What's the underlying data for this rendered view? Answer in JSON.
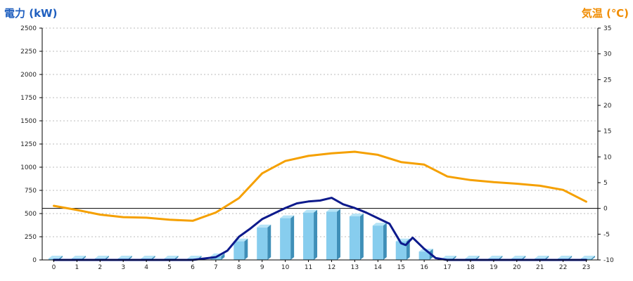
{
  "chart_data": {
    "type": "bar",
    "left_axis_title": "電力 (kW)",
    "right_axis_title": "気温 (℃)",
    "colors": {
      "left_title": "#1f5fbf",
      "right_title": "#f08c00",
      "bar_front": "#87cdee",
      "bar_top": "#b6e4f7",
      "bar_side": "#3f8fb8",
      "power_line": "#0d1a8c",
      "temp_line": "#f5a000",
      "grid": "#bbbbbb"
    },
    "categories": [
      "0",
      "1",
      "2",
      "3",
      "4",
      "5",
      "6",
      "7",
      "8",
      "9",
      "10",
      "11",
      "12",
      "13",
      "14",
      "15",
      "16",
      "17",
      "18",
      "19",
      "20",
      "21",
      "22",
      "23"
    ],
    "y_left": {
      "min": 0,
      "max": 2500,
      "ticks": [
        "0",
        "250",
        "500",
        "750",
        "1000",
        "1250",
        "1500",
        "1750",
        "2000",
        "2250",
        "2500"
      ]
    },
    "y_right": {
      "min": -10,
      "max": 35,
      "ticks": [
        "-10",
        "-5",
        "0",
        "5",
        "10",
        "15",
        "20",
        "25",
        "30",
        "35"
      ],
      "zero_line": 0
    },
    "series": [
      {
        "kind": "bar",
        "axis": "left",
        "values": [
          0,
          0,
          0,
          0,
          0,
          0,
          0,
          40,
          200,
          350,
          450,
          510,
          520,
          470,
          370,
          200,
          90,
          0,
          0,
          0,
          0,
          0,
          0,
          0
        ]
      },
      {
        "kind": "line",
        "axis": "left",
        "x": [
          0,
          1,
          2,
          3,
          4,
          5,
          6,
          7,
          7.5,
          8,
          8.5,
          9,
          9.5,
          10,
          10.5,
          11,
          11.5,
          12,
          12.5,
          13,
          13.5,
          14,
          14.5,
          15,
          15.2,
          15.5,
          16,
          16.5,
          17,
          18,
          19,
          20,
          21,
          22,
          23
        ],
        "values": [
          0,
          0,
          0,
          0,
          0,
          0,
          0,
          30,
          100,
          250,
          340,
          440,
          500,
          560,
          610,
          630,
          640,
          670,
          600,
          560,
          510,
          450,
          390,
          180,
          160,
          240,
          120,
          20,
          0,
          0,
          0,
          0,
          0,
          0,
          0
        ]
      },
      {
        "kind": "line",
        "axis": "right",
        "x": [
          0,
          1,
          2,
          3,
          4,
          5,
          6,
          7,
          8,
          9,
          10,
          11,
          12,
          13,
          14,
          15,
          16,
          17,
          18,
          19,
          20,
          21,
          22,
          23
        ],
        "values": [
          0.5,
          -0.3,
          -1.2,
          -1.7,
          -1.8,
          -2.2,
          -2.4,
          -0.8,
          2.0,
          6.8,
          9.2,
          10.2,
          10.7,
          11.0,
          10.4,
          9.0,
          8.5,
          6.2,
          5.5,
          5.1,
          4.8,
          4.4,
          3.6,
          1.3
        ]
      }
    ],
    "grid": true
  }
}
